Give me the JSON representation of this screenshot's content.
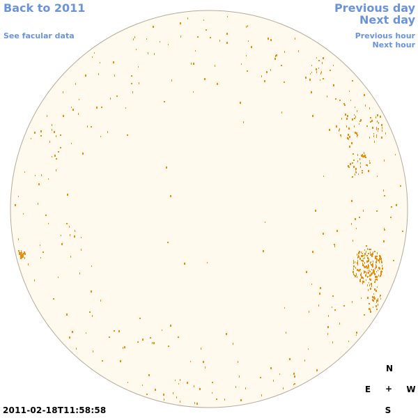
{
  "nav": {
    "back_year": "Back to 2011",
    "facular": "See facular data",
    "previous_day": "Previous day",
    "next_day": "Next day",
    "previous_hour": "Previous hour",
    "next_hour": "Next hour"
  },
  "timestamp": "2011-02-18T11:58:58",
  "compass": {
    "north": "N",
    "east": "E",
    "center": "+",
    "west": "W",
    "south": "S"
  },
  "colors": {
    "link": "#6a93dd",
    "disk_fill": "#fffaed",
    "disk_edge": "#b4aa99",
    "feature": "#ef8a0c",
    "text": "#000000"
  }
}
